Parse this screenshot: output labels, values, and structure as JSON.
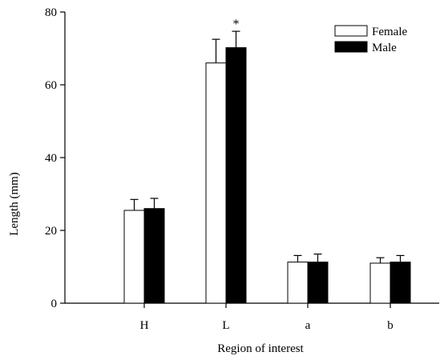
{
  "chart_data": {
    "type": "bar",
    "xlabel": "Region of interest",
    "ylabel": "Length (mm)",
    "ylim": [
      0,
      80
    ],
    "yticks": [
      "0",
      "20",
      "40",
      "60",
      "80"
    ],
    "categories": [
      "H",
      "L",
      "a",
      "b"
    ],
    "series": [
      {
        "name": "Female",
        "values": [
          25.5,
          66,
          11.3,
          11
        ],
        "errors": [
          3,
          6.5,
          1.8,
          1.5
        ],
        "color": "#ffffff"
      },
      {
        "name": "Male",
        "values": [
          26,
          70.2,
          11.3,
          11.3
        ],
        "errors": [
          2.8,
          4.5,
          2.2,
          1.8
        ],
        "color": "#000000"
      }
    ],
    "annotations": [
      {
        "category": "L",
        "series": "Male",
        "text": "*"
      }
    ],
    "legend_position": "top-right",
    "grid": false
  }
}
